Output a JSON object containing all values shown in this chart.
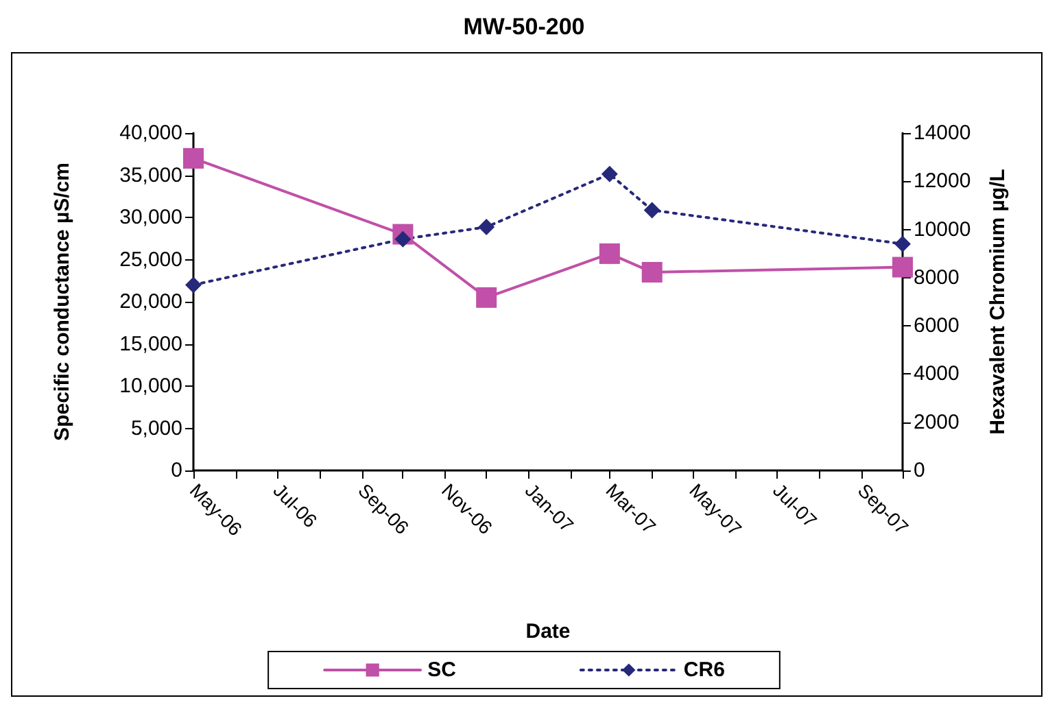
{
  "chart_data": {
    "type": "line",
    "title": "MW-50-200",
    "xlabel": "Date",
    "ylabel": "Specific conductance µS/cm",
    "y2label": "Hexavalent Chromium µg/L",
    "x": [
      "2006-05-01",
      "2006-10-01",
      "2006-12-01",
      "2007-03-01",
      "2007-04-01",
      "2007-10-01"
    ],
    "series": [
      {
        "name": "SC",
        "color": "#c050a8",
        "values": [
          37000,
          28000,
          20500,
          25700,
          23500,
          24100
        ],
        "marker": "square",
        "line_style": "solid"
      },
      {
        "name": "CR6",
        "color": "#26287a",
        "values": [
          7700,
          9600,
          10100,
          12300,
          10800,
          9400
        ],
        "marker": "diamond",
        "line_style": "dotted",
        "axis": "y2"
      }
    ],
    "xlim": [
      "2006-05-01",
      "2007-10-01"
    ],
    "xticks": [
      {
        "value": "2006-05-01",
        "label": "May-06"
      },
      {
        "value": "2006-06-01",
        "label": null
      },
      {
        "value": "2006-07-01",
        "label": "Jul-06"
      },
      {
        "value": "2006-08-01",
        "label": null
      },
      {
        "value": "2006-09-01",
        "label": "Sep-06"
      },
      {
        "value": "2006-10-01",
        "label": null
      },
      {
        "value": "2006-11-01",
        "label": "Nov-06"
      },
      {
        "value": "2006-12-01",
        "label": null
      },
      {
        "value": "2007-01-01",
        "label": "Jan-07"
      },
      {
        "value": "2007-02-01",
        "label": null
      },
      {
        "value": "2007-03-01",
        "label": "Mar-07"
      },
      {
        "value": "2007-04-01",
        "label": null
      },
      {
        "value": "2007-05-01",
        "label": "May-07"
      },
      {
        "value": "2007-06-01",
        "label": null
      },
      {
        "value": "2007-07-01",
        "label": "Jul-07"
      },
      {
        "value": "2007-08-01",
        "label": null
      },
      {
        "value": "2007-09-01",
        "label": "Sep-07"
      },
      {
        "value": "2007-10-01",
        "label": null
      }
    ],
    "ylim": [
      0,
      40000
    ],
    "yticks": [
      {
        "value": 0,
        "label": "0"
      },
      {
        "value": 5000,
        "label": "5,000"
      },
      {
        "value": 10000,
        "label": "10,000"
      },
      {
        "value": 15000,
        "label": "15,000"
      },
      {
        "value": 20000,
        "label": "20,000"
      },
      {
        "value": 25000,
        "label": "25,000"
      },
      {
        "value": 30000,
        "label": "30,000"
      },
      {
        "value": 35000,
        "label": "35,000"
      },
      {
        "value": 40000,
        "label": "40,000"
      }
    ],
    "y2lim": [
      0,
      14000
    ],
    "y2ticks": [
      0,
      2000,
      4000,
      6000,
      8000,
      10000,
      12000,
      14000
    ],
    "grid": false,
    "legend": "bottom"
  }
}
